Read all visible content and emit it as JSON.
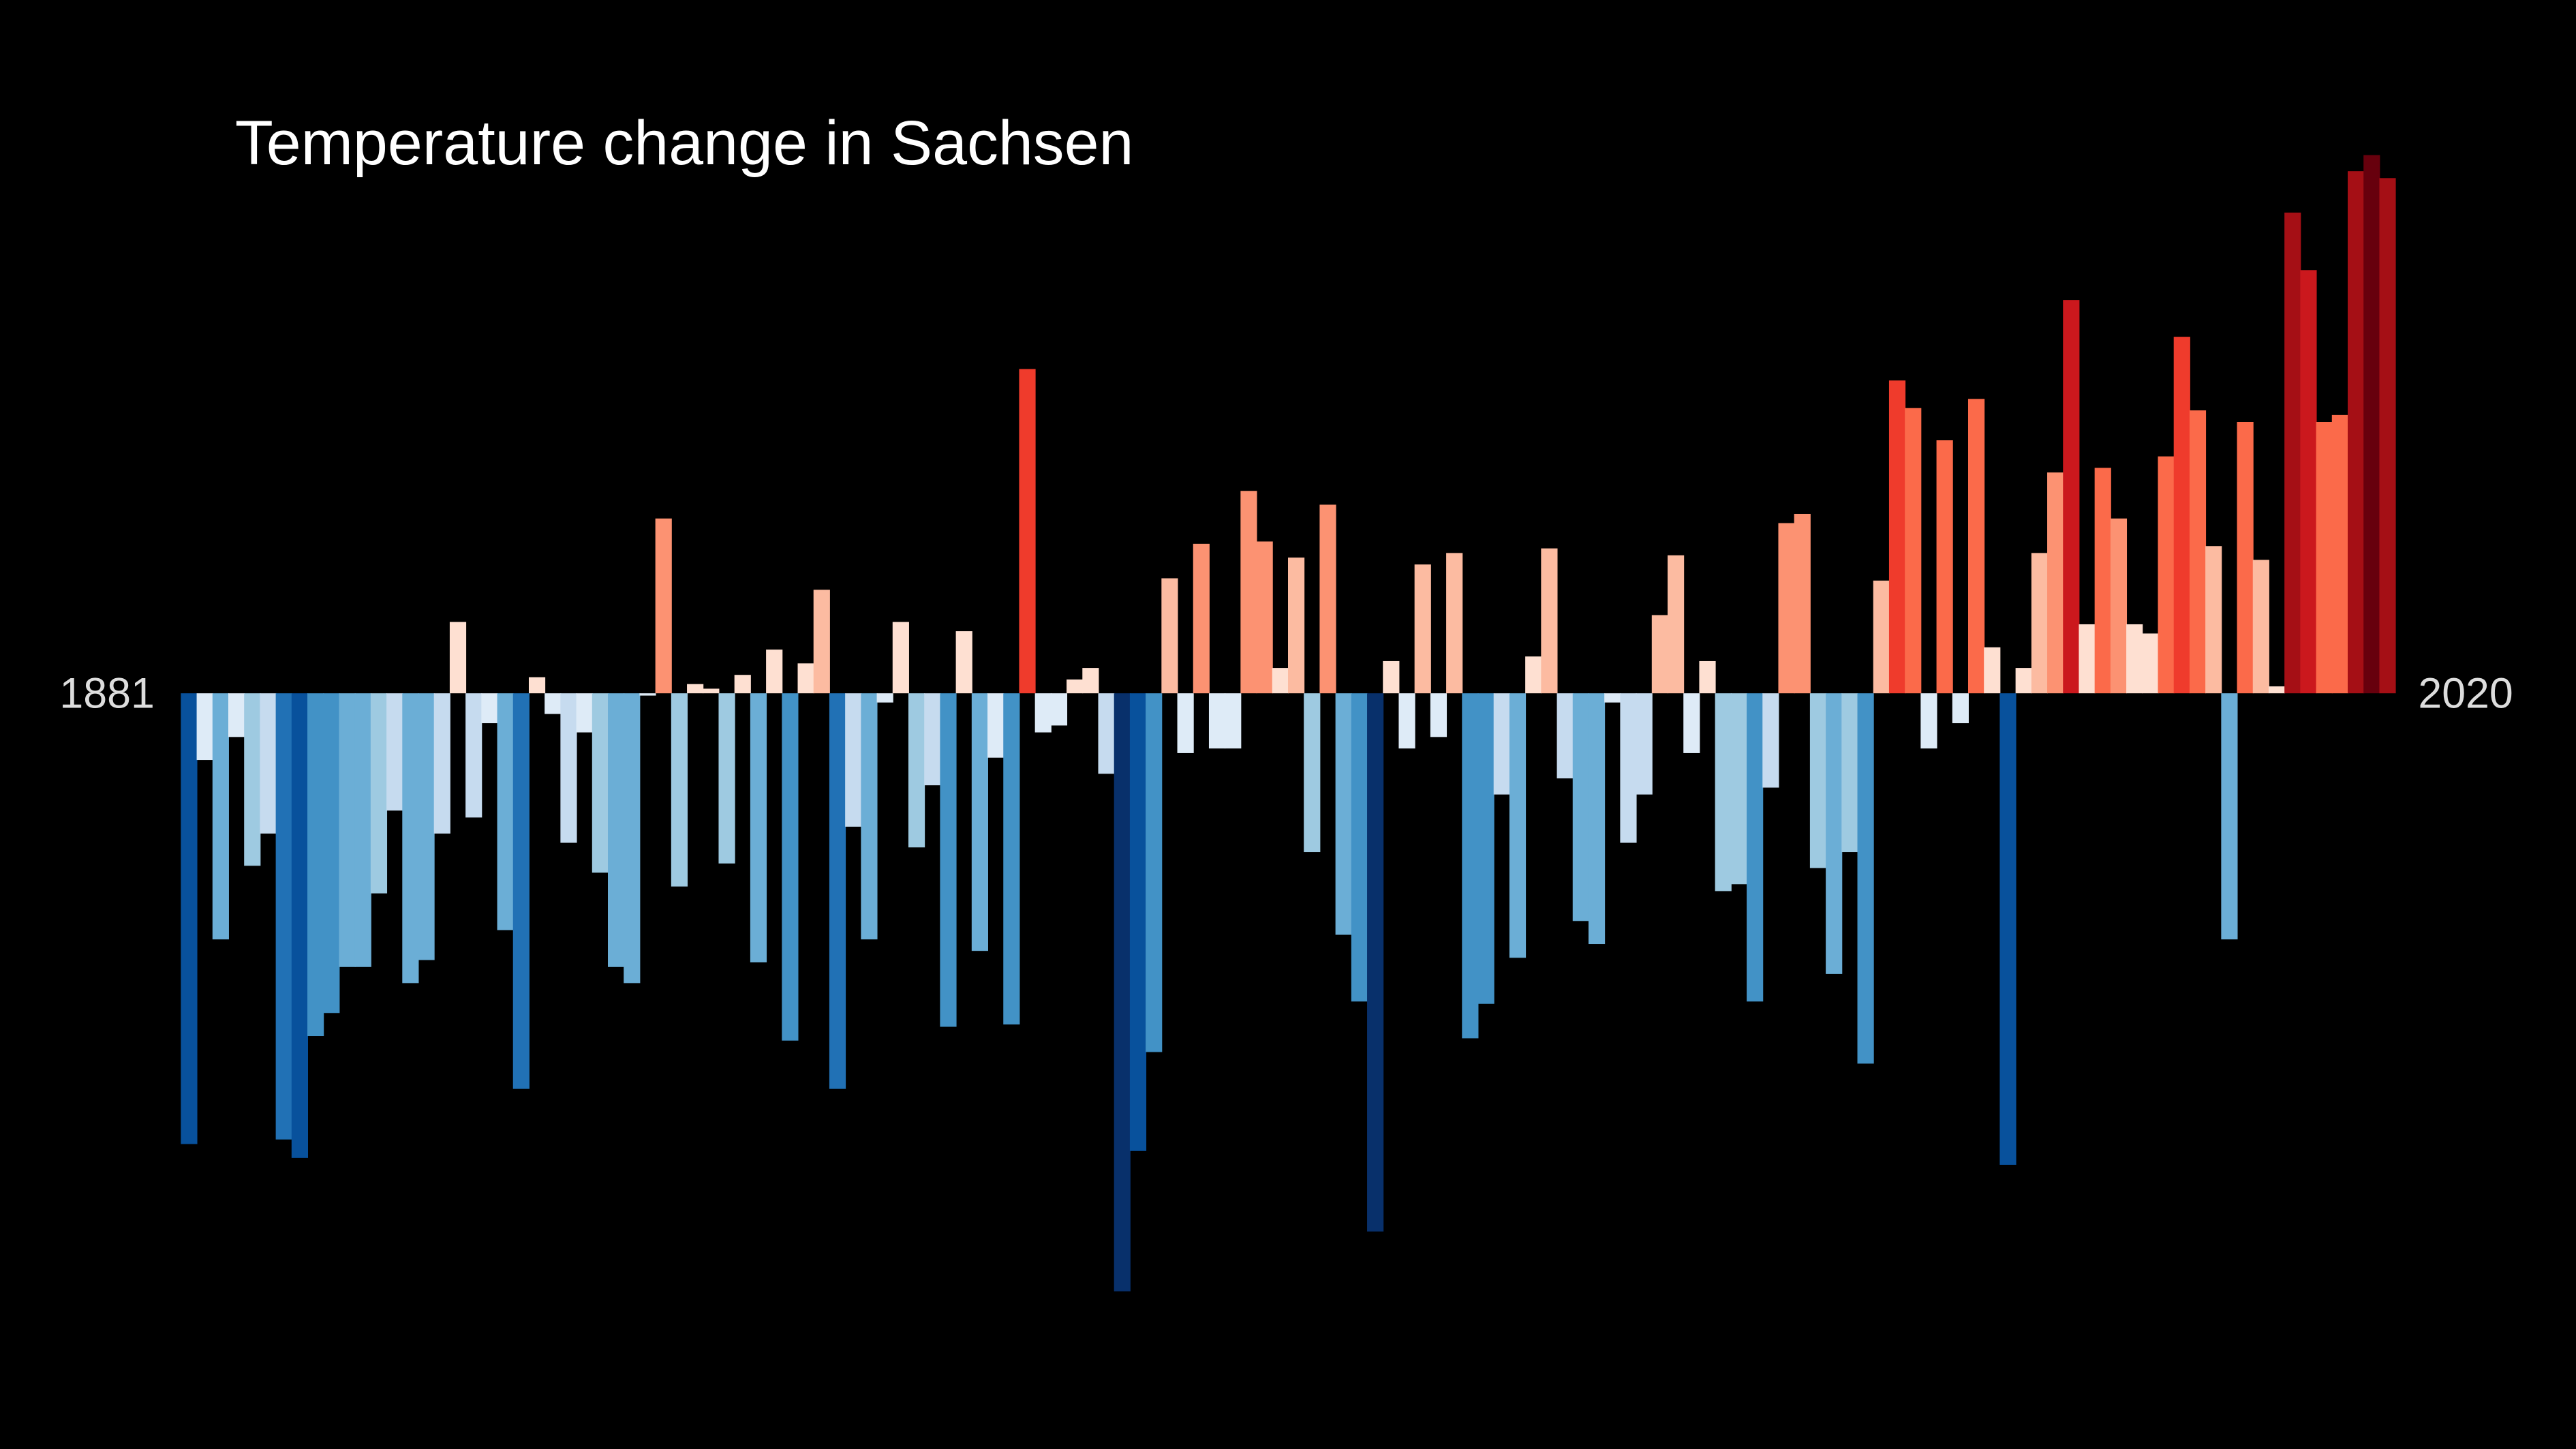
{
  "chart_data": {
    "type": "bar",
    "title": "Temperature change in Sachsen",
    "categories": [
      "1881",
      null,
      null,
      null,
      null,
      null,
      null,
      null,
      null,
      null,
      null,
      null,
      null,
      null,
      null,
      null,
      null,
      null,
      null,
      null,
      null,
      null,
      null,
      null,
      null,
      null,
      null,
      null,
      null,
      null,
      null,
      null,
      null,
      null,
      null,
      null,
      null,
      null,
      null,
      null,
      null,
      null,
      null,
      null,
      null,
      null,
      null,
      null,
      null,
      null,
      null,
      null,
      null,
      null,
      null,
      null,
      null,
      null,
      null,
      null,
      null,
      null,
      null,
      null,
      null,
      null,
      null,
      null,
      null,
      null,
      null,
      null,
      null,
      null,
      null,
      null,
      null,
      null,
      null,
      null,
      null,
      null,
      null,
      null,
      null,
      null,
      null,
      null,
      null,
      null,
      null,
      null,
      null,
      null,
      null,
      null,
      null,
      null,
      null,
      null,
      null,
      null,
      null,
      null,
      null,
      null,
      null,
      null,
      null,
      null,
      null,
      null,
      null,
      null,
      null,
      null,
      null,
      null,
      null,
      null,
      null,
      null,
      null,
      null,
      null,
      null,
      null,
      null,
      null,
      null,
      null,
      null,
      null,
      null,
      null,
      null,
      null,
      null,
      null,
      "2020"
    ],
    "values": [
      -1.96,
      -0.29,
      -1.07,
      -0.19,
      -0.75,
      -0.61,
      -1.94,
      -2.02,
      -1.49,
      -1.39,
      -1.19,
      -1.19,
      -0.87,
      -0.51,
      -1.26,
      -1.16,
      -0.61,
      0.31,
      -0.54,
      -0.13,
      -1.03,
      -1.72,
      0.07,
      -0.09,
      -0.65,
      -0.17,
      -0.78,
      -1.19,
      -1.26,
      -0.01,
      0.76,
      -0.84,
      0.04,
      0.02,
      -0.74,
      0.08,
      -1.17,
      0.19,
      -1.51,
      0.13,
      0.45,
      -1.72,
      -0.58,
      -1.07,
      -0.04,
      0.31,
      -0.67,
      -0.4,
      -1.45,
      0.27,
      -1.12,
      -0.28,
      -1.44,
      1.41,
      -0.17,
      -0.14,
      0.06,
      0.11,
      -0.35,
      -2.6,
      -1.99,
      -1.56,
      0.5,
      -0.26,
      0.65,
      -0.24,
      -0.24,
      0.88,
      0.66,
      0.11,
      0.59,
      -0.69,
      0.82,
      -1.05,
      -1.34,
      -2.34,
      0.14,
      -0.24,
      0.56,
      -0.19,
      0.61,
      -1.5,
      -1.35,
      -0.44,
      -1.15,
      0.16,
      0.63,
      -0.37,
      -0.99,
      -1.09,
      -0.04,
      -0.65,
      -0.44,
      0.34,
      0.6,
      -0.26,
      0.14,
      -0.86,
      -0.83,
      -1.34,
      -0.41,
      0.74,
      0.78,
      -0.76,
      -1.22,
      -0.69,
      -1.61,
      0.49,
      1.36,
      1.24,
      -0.24,
      1.1,
      -0.13,
      1.28,
      0.2,
      -2.05,
      0.11,
      0.61,
      0.96,
      1.71,
      0.3,
      0.98,
      0.76,
      0.3,
      0.26,
      1.03,
      1.55,
      1.23,
      0.64,
      -1.07,
      1.18,
      0.58,
      0.03,
      2.09,
      1.84,
      1.18,
      1.21,
      2.27,
      2.34,
      2.24
    ],
    "ylim": [
      -3,
      3
    ],
    "colors": [
      "#08306b",
      "#08519c",
      "#2171b5",
      "#4292c6",
      "#6baed6",
      "#9ecae1",
      "#c6dbef",
      "#deebf7",
      "#fee0d2",
      "#fcbba1",
      "#fc9272",
      "#fb6a4a",
      "#ef3b2c",
      "#cb181d",
      "#a50f15",
      "#67000d"
    ]
  }
}
